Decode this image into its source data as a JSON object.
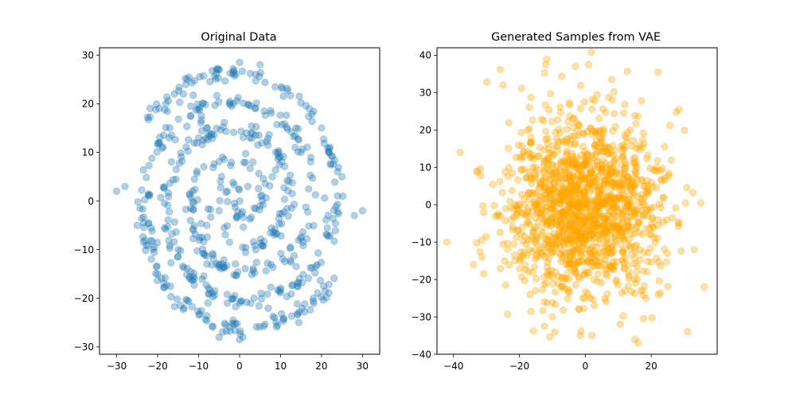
{
  "chart_data": [
    {
      "type": "scatter",
      "title": "Original Data",
      "xlabel": "",
      "ylabel": "",
      "xlim": [
        -34.2,
        34.2
      ],
      "ylim": [
        -31.5,
        31.5
      ],
      "xticks": [
        -30,
        -20,
        -10,
        0,
        10,
        20,
        30
      ],
      "yticks": [
        -30,
        -20,
        -10,
        0,
        10,
        20,
        30
      ],
      "xtick_labels": [
        "−30",
        "−20",
        "−10",
        "0",
        "10",
        "20",
        "30"
      ],
      "ytick_labels": [
        "−30",
        "−20",
        "−10",
        "0",
        "10",
        "20",
        "30"
      ],
      "grid": false,
      "series": [
        {
          "color": "#1f77b4",
          "alpha": 0.35,
          "shape": "spiral",
          "description_values": {
            "arms": 2,
            "turns": 2.4,
            "r_max": 28,
            "point_count": 620
          },
          "points_sample": [
            [
              0,
              0
            ],
            [
              2,
              3
            ],
            [
              -3,
              2
            ],
            [
              5,
              -1
            ],
            [
              -5,
              -2
            ],
            [
              8,
              5
            ],
            [
              -8,
              -5
            ],
            [
              12,
              4
            ],
            [
              -12,
              -4
            ],
            [
              15,
              10
            ],
            [
              -15,
              -10
            ],
            [
              20,
              15
            ],
            [
              -20,
              -15
            ],
            [
              25,
              5
            ],
            [
              -25,
              -5
            ],
            [
              28,
              -3
            ],
            [
              -28,
              3
            ],
            [
              18,
              -20
            ],
            [
              -18,
              20
            ],
            [
              5,
              28
            ],
            [
              -5,
              -28
            ],
            [
              0,
              28.5
            ],
            [
              0,
              -28.5
            ],
            [
              30,
              -2
            ],
            [
              -30,
              2
            ]
          ]
        }
      ]
    },
    {
      "type": "scatter",
      "title": "Generated Samples from VAE",
      "xlabel": "",
      "ylabel": "",
      "xlim": [
        -45,
        40
      ],
      "ylim": [
        -40,
        42
      ],
      "xticks": [
        -40,
        -20,
        0,
        20
      ],
      "yticks": [
        -40,
        -30,
        -20,
        -10,
        0,
        10,
        20,
        30,
        40
      ],
      "xtick_labels": [
        "−40",
        "−20",
        "0",
        "20"
      ],
      "ytick_labels": [
        "−40",
        "−30",
        "−20",
        "−10",
        "0",
        "10",
        "20",
        "30",
        "40"
      ],
      "grid": false,
      "series": [
        {
          "color": "#ffa500",
          "alpha": 0.35,
          "shape": "gaussian_blob",
          "description_values": {
            "mean": [
              0,
              0
            ],
            "std": 12,
            "point_count": 1500
          },
          "points_sample": [
            [
              -42,
              -10
            ],
            [
              -38,
              14
            ],
            [
              -34,
              -16
            ],
            [
              -25,
              32
            ],
            [
              -12,
              37.5
            ],
            [
              -3,
              37
            ],
            [
              1,
              37.5
            ],
            [
              8,
              33.5
            ],
            [
              22,
              35.5
            ],
            [
              31,
              -34
            ],
            [
              15,
              -36
            ],
            [
              16,
              -37
            ],
            [
              36,
              -22
            ],
            [
              35,
              0.5
            ],
            [
              33,
              -12
            ],
            [
              -10,
              -30
            ],
            [
              2,
              -35
            ]
          ]
        }
      ]
    }
  ]
}
